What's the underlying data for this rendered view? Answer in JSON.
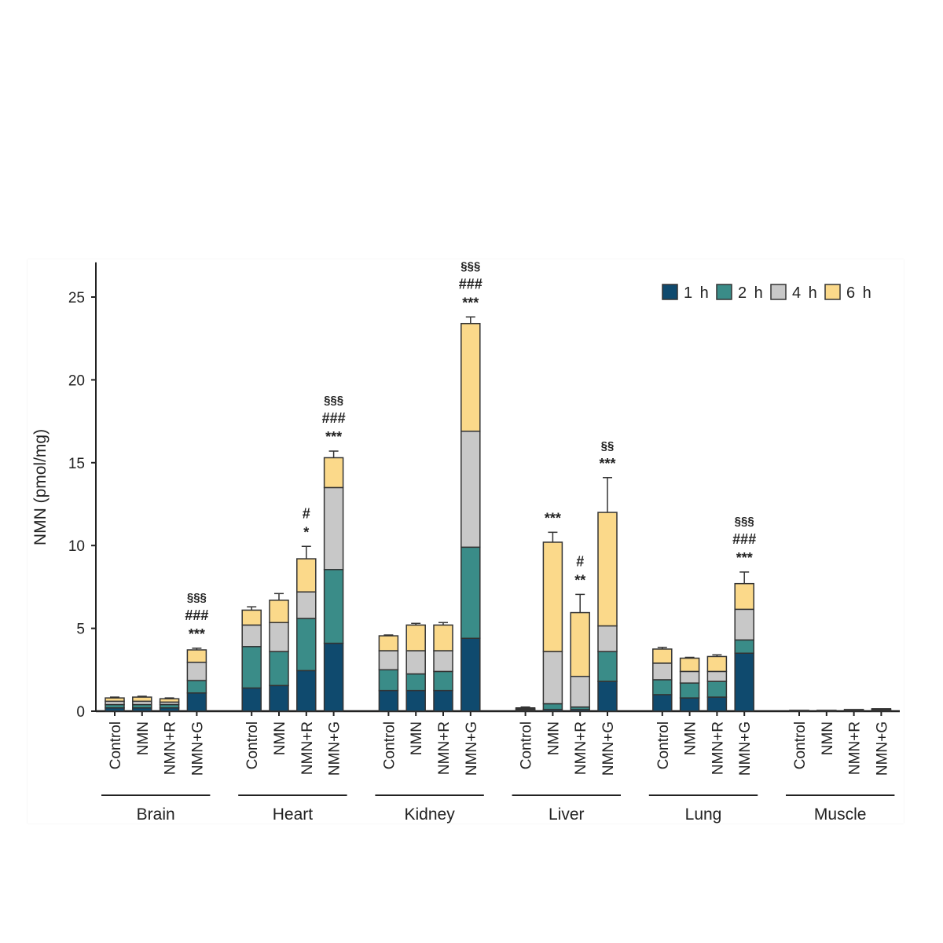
{
  "chart_data": {
    "type": "bar",
    "stacked": true,
    "ylabel": "NMN (pmol/mg)",
    "xlabel": "",
    "ylim": [
      0,
      27
    ],
    "yticks": [
      0,
      5,
      10,
      15,
      20,
      25
    ],
    "grid": false,
    "legend_placement": "top-right",
    "groups": [
      "Brain",
      "Heart",
      "Kidney",
      "Liver",
      "Lung",
      "Muscle"
    ],
    "categories": [
      "Control",
      "NMN",
      "NMN+R",
      "NMN+G"
    ],
    "series": [
      {
        "name": "1 h",
        "color": "#0f4a6e",
        "values": [
          [
            0.2,
            0.2,
            0.2,
            1.1
          ],
          [
            1.4,
            1.55,
            2.45,
            4.1
          ],
          [
            1.25,
            1.25,
            1.25,
            4.4
          ],
          [
            0.05,
            0.1,
            0.1,
            1.8
          ],
          [
            1.0,
            0.8,
            0.85,
            3.5
          ],
          [
            0.02,
            0.02,
            0.03,
            0.05
          ]
        ]
      },
      {
        "name": "2 h",
        "color": "#3a8c88",
        "values": [
          [
            0.2,
            0.2,
            0.2,
            0.75
          ],
          [
            2.5,
            2.05,
            3.15,
            4.45
          ],
          [
            1.25,
            1.0,
            1.15,
            5.5
          ],
          [
            0.05,
            0.35,
            0.15,
            1.8
          ],
          [
            0.9,
            0.9,
            0.95,
            0.8
          ],
          [
            0.01,
            0.01,
            0.02,
            0.03
          ]
        ]
      },
      {
        "name": "4 h",
        "color": "#c8c8c8",
        "values": [
          [
            0.2,
            0.2,
            0.15,
            1.1
          ],
          [
            1.3,
            1.75,
            1.6,
            4.95
          ],
          [
            1.15,
            1.4,
            1.25,
            7.0
          ],
          [
            0.05,
            3.15,
            1.85,
            1.55
          ],
          [
            1.0,
            0.7,
            0.6,
            1.85
          ],
          [
            0.01,
            0.01,
            0.02,
            0.03
          ]
        ]
      },
      {
        "name": "6 h",
        "color": "#fbd98a",
        "values": [
          [
            0.2,
            0.25,
            0.2,
            0.75
          ],
          [
            0.9,
            1.35,
            2.0,
            1.8
          ],
          [
            0.9,
            1.55,
            1.55,
            6.5
          ],
          [
            0.05,
            6.6,
            3.85,
            6.85
          ],
          [
            0.85,
            0.8,
            0.9,
            1.55
          ],
          [
            0.01,
            0.01,
            0.03,
            0.04
          ]
        ]
      }
    ],
    "errors_total": [
      [
        0.05,
        0.05,
        0.05,
        0.1
      ],
      [
        0.2,
        0.4,
        0.75,
        0.4
      ],
      [
        0.05,
        0.1,
        0.15,
        0.4
      ],
      [
        0.05,
        0.6,
        1.1,
        2.1
      ],
      [
        0.1,
        0.05,
        0.1,
        0.7
      ],
      [
        0,
        0,
        0,
        0
      ]
    ],
    "annotations": [
      {
        "group": 0,
        "bar": 3,
        "lines": [
          "§§§",
          "###",
          "***"
        ]
      },
      {
        "group": 1,
        "bar": 2,
        "lines": [
          "#",
          "*"
        ]
      },
      {
        "group": 1,
        "bar": 3,
        "lines": [
          "§§§",
          "###",
          "***"
        ]
      },
      {
        "group": 2,
        "bar": 3,
        "lines": [
          "§§§",
          "###",
          "***"
        ]
      },
      {
        "group": 3,
        "bar": 1,
        "lines": [
          "***"
        ]
      },
      {
        "group": 3,
        "bar": 2,
        "lines": [
          "#",
          "**"
        ]
      },
      {
        "group": 3,
        "bar": 3,
        "lines": [
          "§§",
          "***"
        ]
      },
      {
        "group": 4,
        "bar": 3,
        "lines": [
          "§§§",
          "###",
          "***"
        ]
      }
    ]
  }
}
